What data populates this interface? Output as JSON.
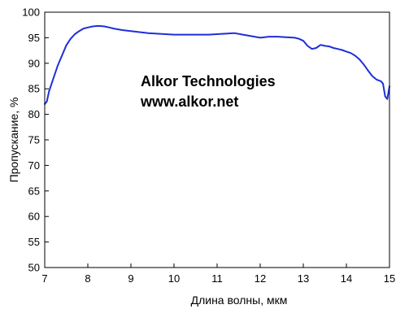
{
  "chart_data": {
    "type": "line",
    "xlabel": "Длина волны, мкм",
    "ylabel": "Пропускание, %",
    "xlim": [
      7,
      15
    ],
    "ylim": [
      50,
      100
    ],
    "x_ticks": [
      "7",
      "8",
      "9",
      "10",
      "11",
      "12",
      "13",
      "14",
      "15"
    ],
    "y_ticks": [
      "50",
      "55",
      "60",
      "65",
      "70",
      "75",
      "80",
      "85",
      "90",
      "95",
      "100"
    ],
    "grid": false,
    "annotations": [
      "Alkor Technologies",
      "www.alkor.net"
    ],
    "line_color": "#1f2fd6",
    "series": [
      {
        "x": [
          7.0,
          7.05,
          7.1,
          7.2,
          7.3,
          7.4,
          7.5,
          7.6,
          7.7,
          7.8,
          7.9,
          8.0,
          8.1,
          8.2,
          8.3,
          8.4,
          8.5,
          8.6,
          8.8,
          9.0,
          9.2,
          9.4,
          9.6,
          9.8,
          10.0,
          10.2,
          10.4,
          10.6,
          10.8,
          11.0,
          11.2,
          11.4,
          11.6,
          11.8,
          12.0,
          12.2,
          12.4,
          12.6,
          12.8,
          12.9,
          13.0,
          13.1,
          13.2,
          13.3,
          13.4,
          13.5,
          13.6,
          13.7,
          13.8,
          13.9,
          14.0,
          14.1,
          14.2,
          14.3,
          14.4,
          14.5,
          14.6,
          14.7,
          14.8,
          14.85,
          14.9,
          14.95,
          15.0
        ],
        "y": [
          82.0,
          82.5,
          84.5,
          87.0,
          89.5,
          91.5,
          93.5,
          94.8,
          95.7,
          96.3,
          96.8,
          97.0,
          97.2,
          97.3,
          97.3,
          97.2,
          97.0,
          96.8,
          96.5,
          96.3,
          96.1,
          95.9,
          95.8,
          95.7,
          95.6,
          95.6,
          95.6,
          95.6,
          95.6,
          95.7,
          95.8,
          95.9,
          95.6,
          95.3,
          95.0,
          95.2,
          95.2,
          95.1,
          95.0,
          94.8,
          94.4,
          93.4,
          92.8,
          93.0,
          93.6,
          93.4,
          93.3,
          93.0,
          92.8,
          92.6,
          92.3,
          92.0,
          91.5,
          90.8,
          89.8,
          88.6,
          87.5,
          86.8,
          86.5,
          86.0,
          83.5,
          83.0,
          85.5
        ]
      }
    ]
  }
}
